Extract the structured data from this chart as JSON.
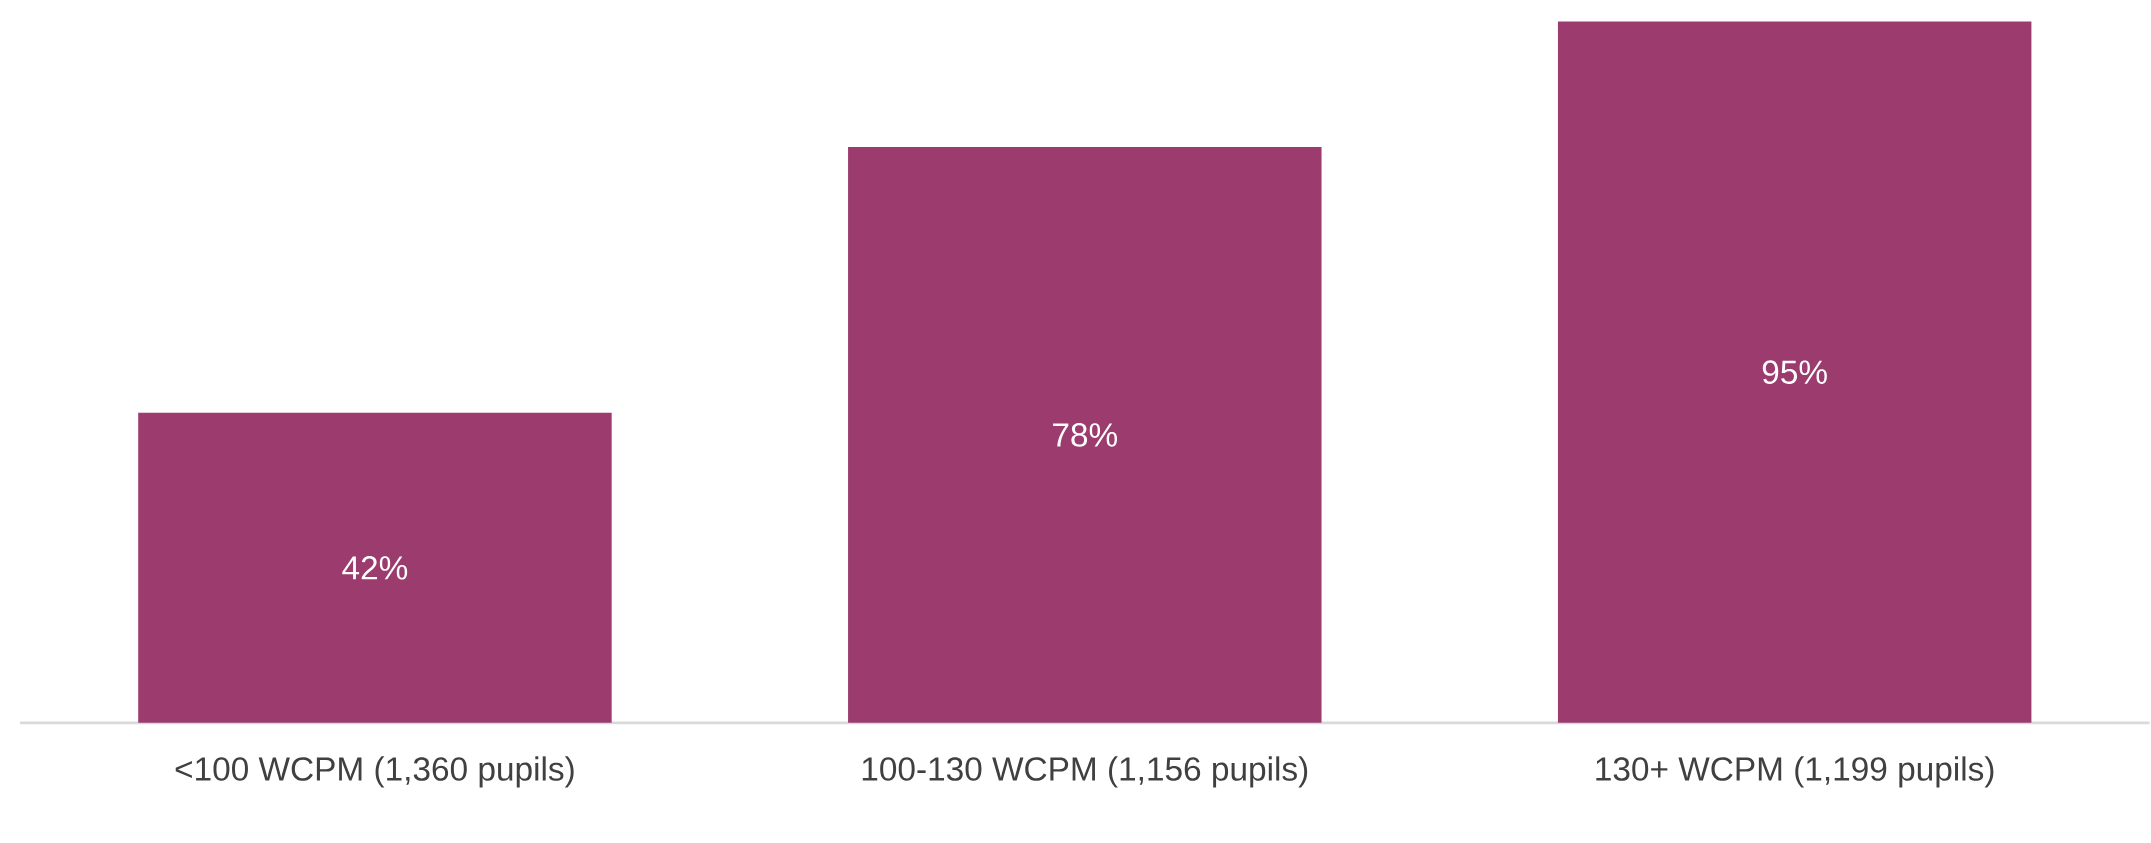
{
  "chart_data": {
    "type": "bar",
    "categories": [
      "<100 WCPM (1,360 pupils)",
      "100-130 WCPM (1,156 pupils)",
      "130+ WCPM (1,199 pupils)"
    ],
    "values": [
      42,
      78,
      95
    ],
    "color": "#9b3b6e",
    "value_labels": [
      "42%",
      "78%",
      "95%"
    ]
  }
}
